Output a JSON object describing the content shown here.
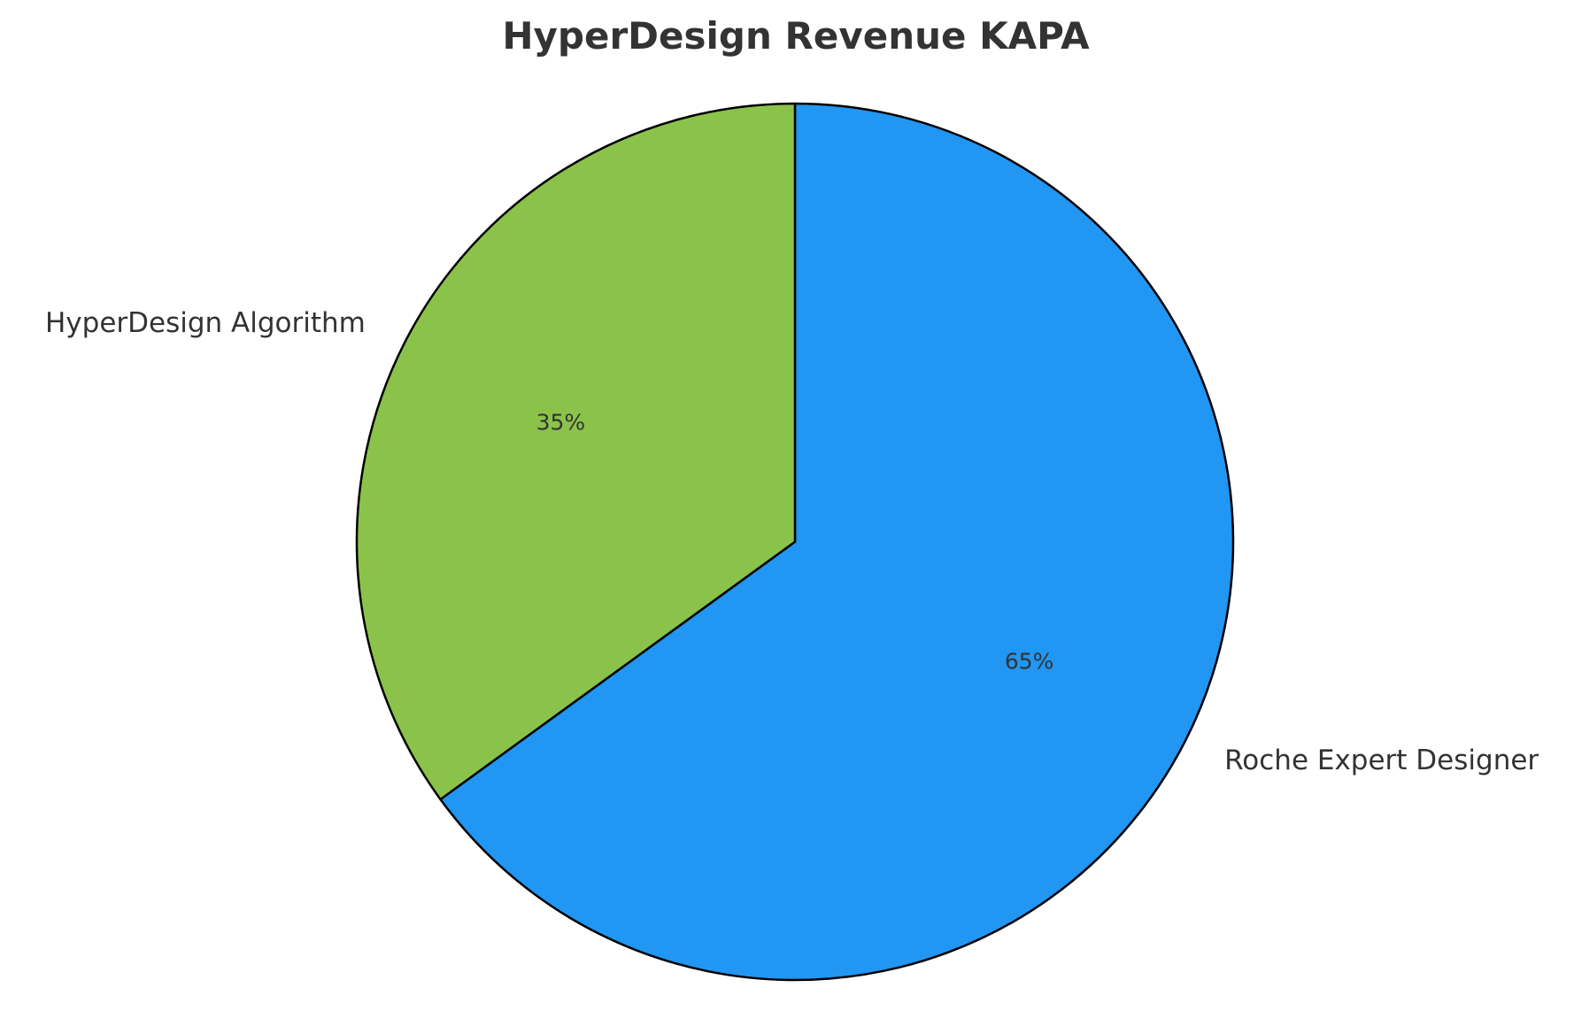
{
  "chart_data": {
    "type": "pie",
    "title": "HyperDesign Revenue KAPA",
    "start_angle_deg": 90,
    "direction": "clockwise",
    "slices": [
      {
        "label": "Roche Expert Designer",
        "value": 65,
        "pct_label": "65%",
        "color": "#2196F3"
      },
      {
        "label": "HyperDesign Algorithm",
        "value": 35,
        "pct_label": "35%",
        "color": "#8BC34A"
      }
    ]
  }
}
